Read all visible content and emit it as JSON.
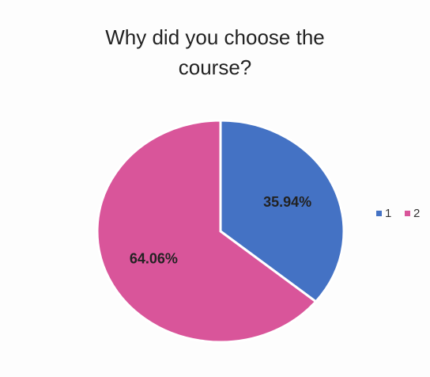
{
  "chart_data": {
    "type": "pie",
    "title": "Why did you choose the course?",
    "categories": [
      "1",
      "2"
    ],
    "values": [
      35.94,
      64.06
    ],
    "value_labels": [
      "35.94%",
      "64.06%"
    ],
    "colors": [
      "#4472c4",
      "#d9559a"
    ],
    "legend": "right"
  }
}
